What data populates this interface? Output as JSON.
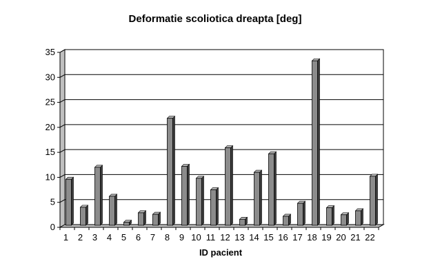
{
  "chart_data": {
    "type": "bar",
    "title": "Deformatie scoliotica dreapta [deg]",
    "xlabel": "ID pacient",
    "ylabel": "",
    "categories": [
      "1",
      "2",
      "3",
      "4",
      "5",
      "6",
      "7",
      "8",
      "9",
      "10",
      "11",
      "12",
      "13",
      "14",
      "15",
      "16",
      "17",
      "18",
      "19",
      "20",
      "21",
      "22"
    ],
    "values": [
      9.2,
      3.6,
      11.6,
      5.8,
      0.6,
      2.5,
      2.2,
      21.4,
      11.8,
      9.4,
      7.1,
      15.5,
      1.2,
      10.6,
      14.3,
      1.8,
      4.4,
      32.9,
      3.5,
      2.1,
      2.9,
      9.8
    ],
    "ylim": [
      0,
      35
    ],
    "yticks": [
      0,
      5,
      10,
      15,
      20,
      25,
      30,
      35
    ],
    "grid": true,
    "legend": "none",
    "colors": {
      "bar_front": "#8c8c8c",
      "bar_side": "#3c3c3c",
      "bar_top": "#b4b4b4",
      "wall": "#ffffff",
      "floor": "#c0c0c0",
      "gridline": "#000000"
    }
  }
}
